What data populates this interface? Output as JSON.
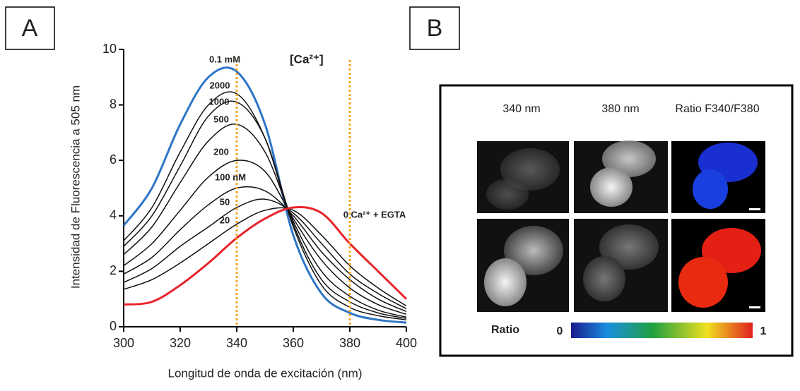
{
  "panels": [
    "A",
    "B"
  ],
  "chart_data": {
    "type": "line",
    "x_label": "Longitud de onda de excitación (nm)",
    "y_label": "Intensidad de Fluorescencia  a 505 nm",
    "annotation": "[Ca²⁺]",
    "x": [
      300,
      310,
      320,
      330,
      340,
      350,
      360,
      370,
      380,
      390,
      400
    ],
    "series": [
      {
        "name": "0.1 mM",
        "color": "#2e75c6",
        "values": [
          3.65,
          5.0,
          7.3,
          9.0,
          9.2,
          7.3,
          3.3,
          1.2,
          0.5,
          0.25,
          0.15
        ]
      },
      {
        "name": "2000",
        "color": "#111111",
        "values": [
          3.1,
          4.3,
          6.3,
          8.0,
          8.4,
          6.8,
          3.6,
          1.5,
          0.7,
          0.4,
          0.25
        ]
      },
      {
        "name": "1000",
        "color": "#111111",
        "values": [
          2.9,
          4.0,
          5.8,
          7.6,
          8.1,
          6.8,
          3.7,
          1.7,
          0.9,
          0.5,
          0.3
        ]
      },
      {
        "name": "500",
        "color": "#111111",
        "values": [
          2.6,
          3.6,
          5.2,
          6.7,
          7.3,
          6.3,
          3.8,
          2.0,
          1.1,
          0.6,
          0.35
        ]
      },
      {
        "name": "200",
        "color": "#111111",
        "values": [
          2.2,
          3.0,
          4.2,
          5.4,
          6.0,
          5.6,
          3.9,
          2.4,
          1.4,
          0.8,
          0.45
        ]
      },
      {
        "name": "100 nM",
        "color": "#111111",
        "values": [
          1.9,
          2.5,
          3.5,
          4.4,
          5.0,
          4.9,
          4.0,
          2.7,
          1.7,
          1.0,
          0.55
        ]
      },
      {
        "name": "50",
        "color": "#111111",
        "values": [
          1.6,
          2.1,
          2.9,
          3.6,
          4.3,
          4.6,
          4.1,
          3.0,
          1.9,
          1.2,
          0.65
        ]
      },
      {
        "name": "20",
        "color": "#111111",
        "values": [
          1.35,
          1.7,
          2.3,
          3.0,
          3.7,
          4.2,
          4.2,
          3.3,
          2.2,
          1.4,
          0.75
        ]
      },
      {
        "name": "0 Ca²⁺ + EGTA",
        "color": "#e8232a",
        "values": [
          0.8,
          0.9,
          1.5,
          2.3,
          3.2,
          3.9,
          4.3,
          4.1,
          3.0,
          2.0,
          1.0
        ]
      }
    ],
    "vlines": [
      340,
      380
    ],
    "vline_color": "#f5a623",
    "xlim": [
      300,
      400
    ],
    "xticks": [
      300,
      320,
      340,
      360,
      380,
      400
    ],
    "ylim": [
      0,
      10
    ],
    "yticks": [
      0,
      2,
      4,
      6,
      8,
      10
    ]
  },
  "imaging": {
    "columns": [
      "340 nm",
      "380 nm",
      "Ratio F340/F380"
    ],
    "colorbar": {
      "label": "Ratio",
      "min": "0",
      "max": "1"
    }
  }
}
